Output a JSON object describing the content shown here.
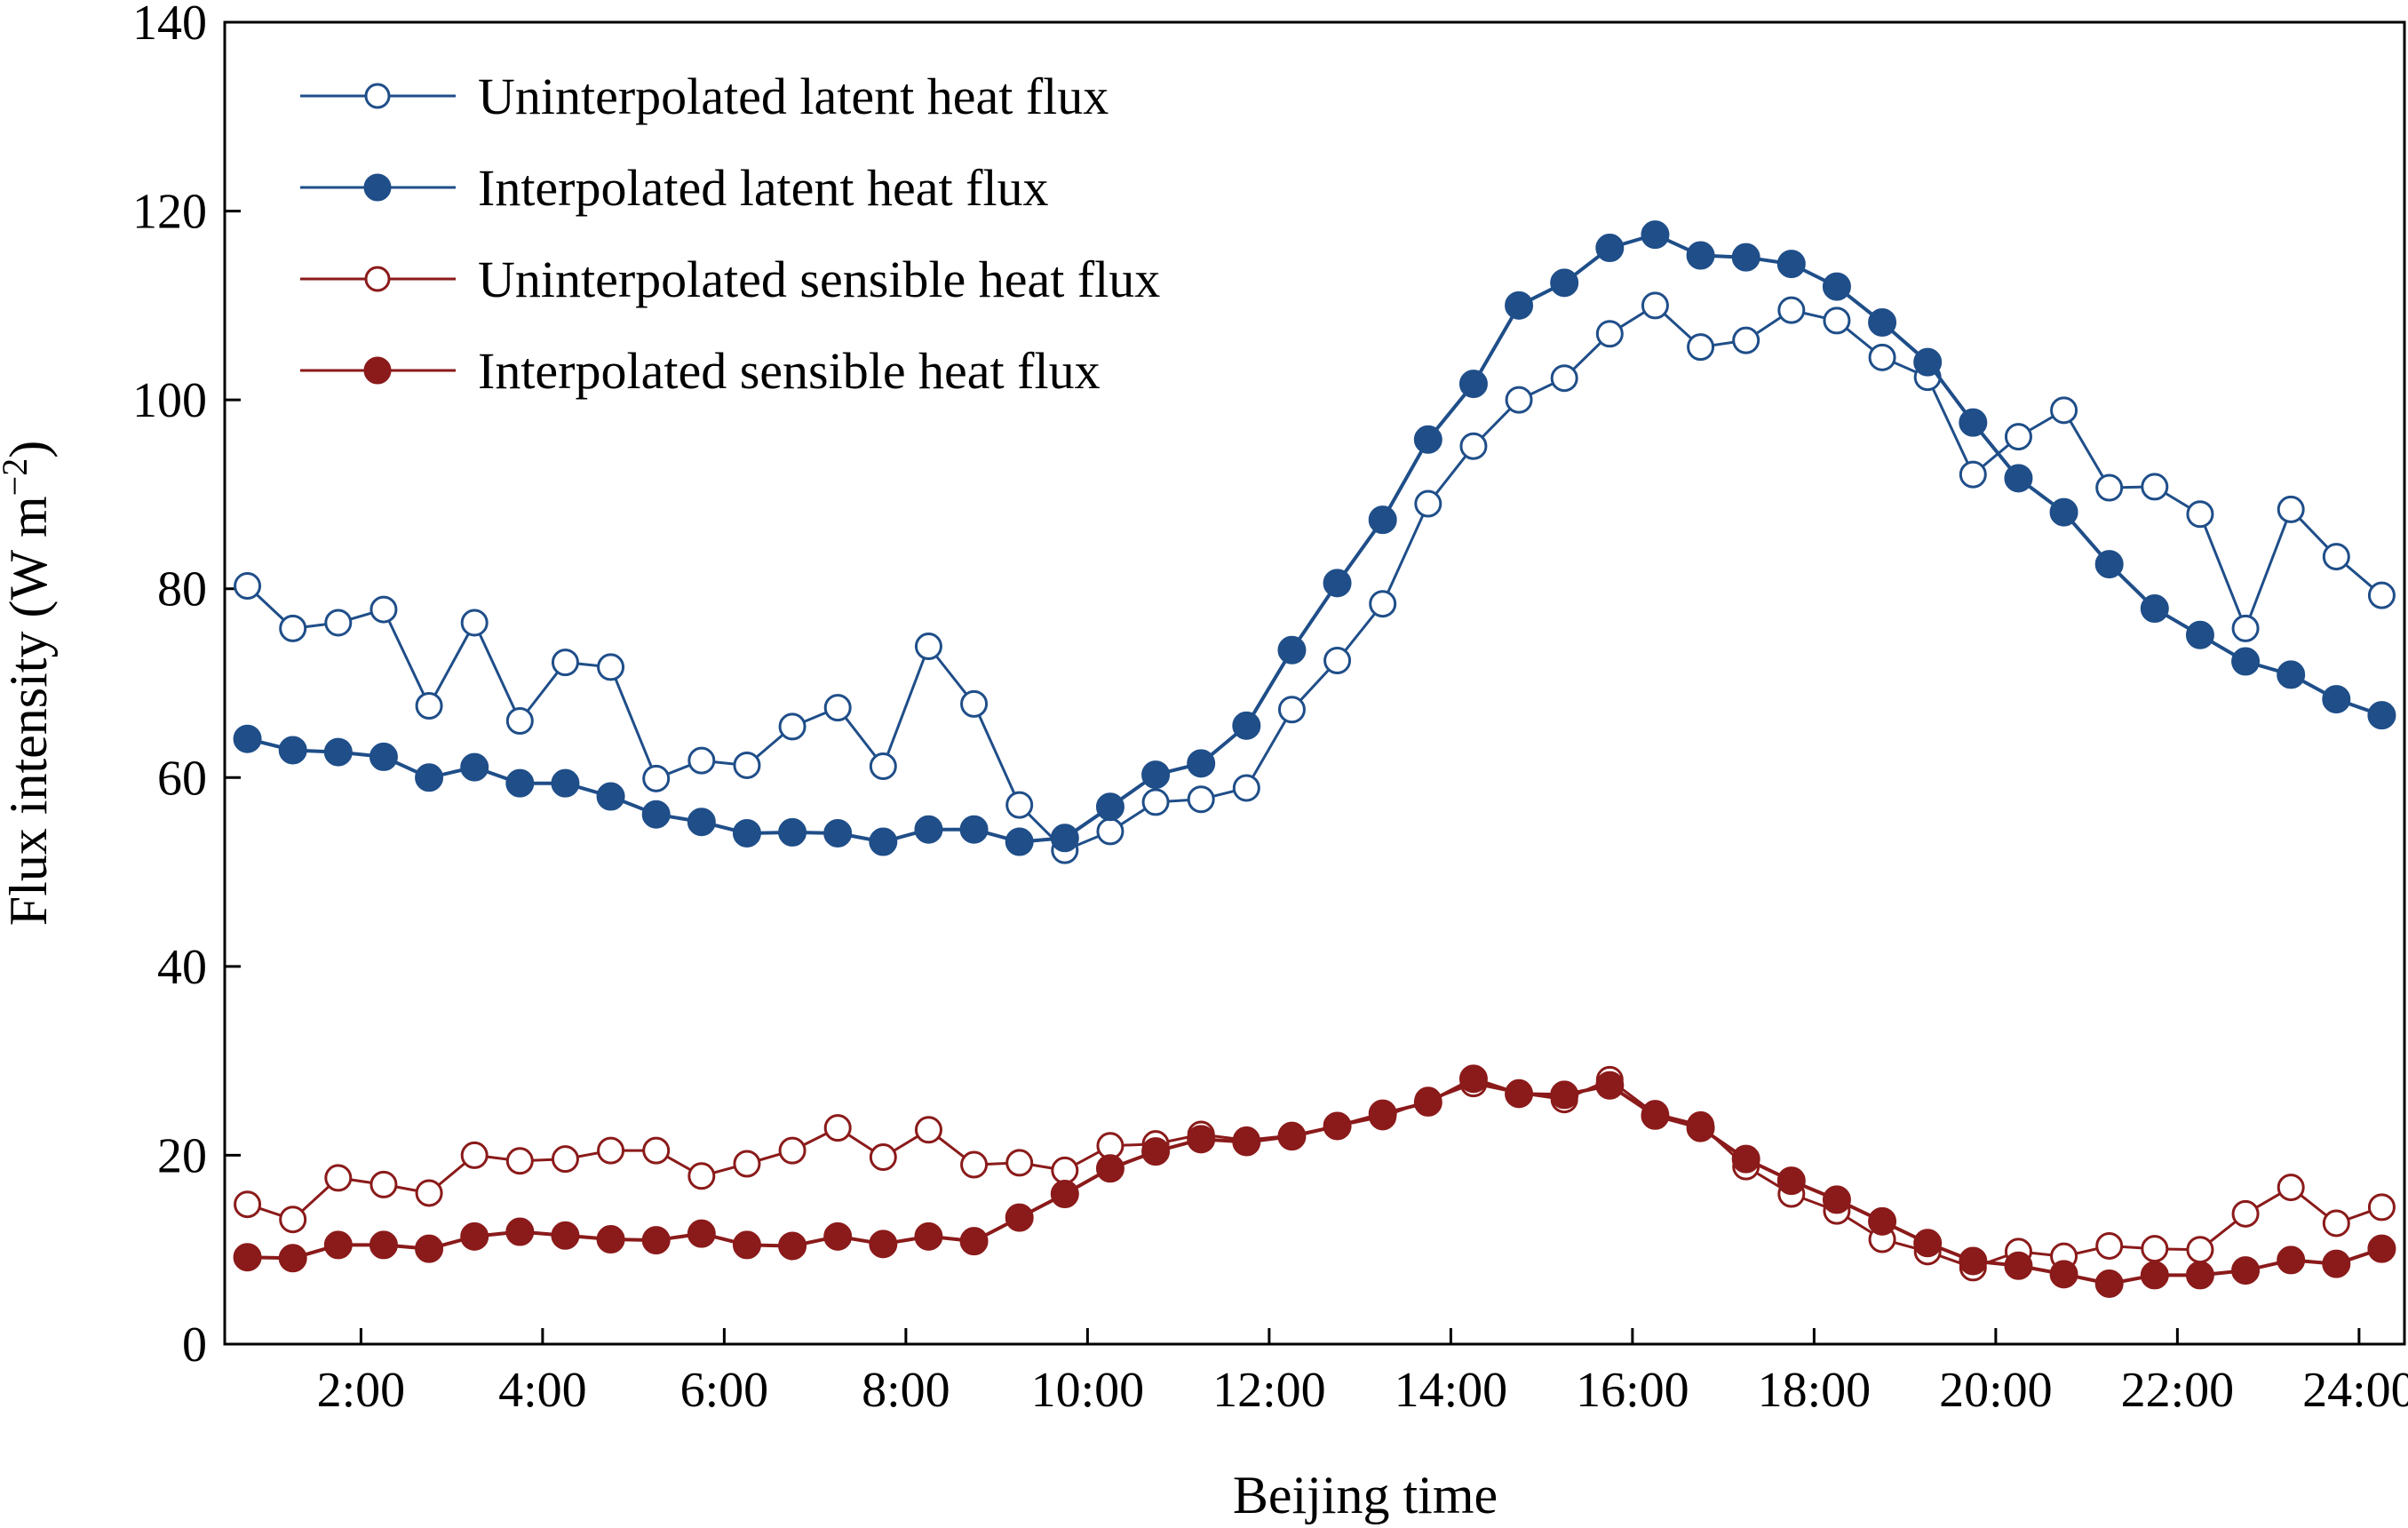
{
  "chart_data": {
    "type": "line",
    "xlabel": "Beijing time",
    "ylabel": "Flux intensity (W m",
    "ylabel_sup": "−2",
    "ylabel_close": ")",
    "xlim": [
      0.5,
      24.5
    ],
    "ylim": [
      0,
      140
    ],
    "x_ticks": [
      {
        "value": 2,
        "label": "2:00"
      },
      {
        "value": 4,
        "label": "4:00"
      },
      {
        "value": 6,
        "label": "6:00"
      },
      {
        "value": 8,
        "label": "8:00"
      },
      {
        "value": 10,
        "label": "10:00"
      },
      {
        "value": 12,
        "label": "12:00"
      },
      {
        "value": 14,
        "label": "14:00"
      },
      {
        "value": 16,
        "label": "16:00"
      },
      {
        "value": 18,
        "label": "18:00"
      },
      {
        "value": 20,
        "label": "20:00"
      },
      {
        "value": 22,
        "label": "22:00"
      },
      {
        "value": 24,
        "label": "24:00"
      }
    ],
    "y_ticks": [
      {
        "value": 0,
        "label": "0"
      },
      {
        "value": 20,
        "label": "20"
      },
      {
        "value": 40,
        "label": "40"
      },
      {
        "value": 60,
        "label": "60"
      },
      {
        "value": 80,
        "label": "80"
      },
      {
        "value": 100,
        "label": "100"
      },
      {
        "value": 120,
        "label": "120"
      },
      {
        "value": 140,
        "label": "140"
      }
    ],
    "x": [
      0.75,
      1.25,
      1.75,
      2.25,
      2.75,
      3.25,
      3.75,
      4.25,
      4.75,
      5.25,
      5.75,
      6.25,
      6.75,
      7.25,
      7.75,
      8.25,
      8.75,
      9.25,
      9.75,
      10.25,
      10.75,
      11.25,
      11.75,
      12.25,
      12.75,
      13.25,
      13.75,
      14.25,
      14.75,
      15.25,
      15.75,
      16.25,
      16.75,
      17.25,
      17.75,
      18.25,
      18.75,
      19.25,
      19.75,
      20.25,
      20.75,
      21.25,
      21.75,
      22.25,
      22.75,
      23.25,
      23.75,
      24.25
    ],
    "series": [
      {
        "name": "Uninterpolated latent heat flux",
        "color": "#1f4e89",
        "marker": "open",
        "values": [
          80.3,
          75.8,
          76.4,
          77.8,
          67.6,
          76.4,
          66,
          72.2,
          71.7,
          59.9,
          61.8,
          61.3,
          65.4,
          67.4,
          61.2,
          73.9,
          67.8,
          57.1,
          52.3,
          54.3,
          57.4,
          57.7,
          58.9,
          67.2,
          72.4,
          78.4,
          89,
          95.1,
          100,
          102.3,
          107,
          110,
          105.6,
          106.3,
          109.5,
          108.4,
          104.5,
          102.4,
          92.1,
          96.1,
          98.9,
          90.7,
          90.8,
          87.9,
          75.8,
          88.4,
          83.4,
          79.3
        ]
      },
      {
        "name": "Interpolated latent heat flux",
        "color": "#1f4e89",
        "marker": "filled",
        "values": [
          64.1,
          62.9,
          62.7,
          62.2,
          60,
          61.1,
          59.4,
          59.4,
          58,
          56.1,
          55.3,
          54.1,
          54.2,
          54.1,
          53.2,
          54.5,
          54.5,
          53.2,
          53.6,
          56.9,
          60.3,
          61.5,
          65.5,
          73.5,
          80.6,
          87.3,
          95.8,
          101.7,
          110,
          112.4,
          116.1,
          117.5,
          115.3,
          115.1,
          114.4,
          112,
          108.2,
          104,
          97.6,
          91.7,
          88.1,
          82.6,
          77.9,
          75.1,
          72.3,
          70.9,
          68.3,
          66.6
        ]
      },
      {
        "name": "Uninterpolated sensible heat flux",
        "color": "#8b1a1a",
        "marker": "open",
        "values": [
          14.8,
          13.2,
          17.6,
          16.9,
          16,
          20,
          19.4,
          19.6,
          20.5,
          20.5,
          17.8,
          19.1,
          20.5,
          22.9,
          19.8,
          22.7,
          19,
          19.2,
          18.4,
          21,
          21.2,
          22.2,
          21.6,
          22.1,
          23.1,
          24.1,
          25.8,
          27.6,
          26.6,
          25.9,
          28,
          24.4,
          23.2,
          18.8,
          15.9,
          14.1,
          11.1,
          9.8,
          8.1,
          9.8,
          9.3,
          10.4,
          10.1,
          10,
          13.8,
          16.6,
          12.8,
          14.5
        ]
      },
      {
        "name": "Interpolated sensible heat flux",
        "color": "#8b1a1a",
        "marker": "filled",
        "values": [
          9.2,
          9.1,
          10.5,
          10.5,
          10.1,
          11.4,
          11.9,
          11.5,
          11.1,
          11,
          11.7,
          10.5,
          10.4,
          11.4,
          10.6,
          11.4,
          10.9,
          13.4,
          15.9,
          18.6,
          20.4,
          21.7,
          21.4,
          22,
          23.1,
          24.4,
          25.6,
          28.1,
          26.5,
          26.4,
          27.4,
          24.2,
          22.9,
          19.6,
          17.3,
          15.3,
          13,
          10.7,
          8.8,
          8.3,
          7.4,
          6.4,
          7.3,
          7.3,
          7.8,
          8.9,
          8.5,
          10.1
        ]
      }
    ],
    "legend_position": "top-left",
    "grid": false
  }
}
